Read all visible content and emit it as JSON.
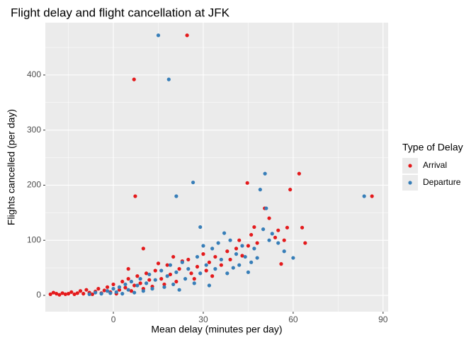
{
  "chart_data": {
    "type": "scatter",
    "title": "Flight delay and flight cancellation at JFK",
    "x_label": "Mean delay (minutes per day)",
    "y_label": "Flights cancelled (per day)",
    "legend_title": "Type of Delay",
    "legend_position": "right",
    "grid": true,
    "xlim": [
      -22.7,
      91.7
    ],
    "xticks": [
      0,
      30,
      60,
      90
    ],
    "ylim": [
      -29.6,
      495
    ],
    "yticks": [
      0,
      100,
      200,
      300,
      400
    ],
    "series": [
      {
        "name": "Arrival",
        "color": "#E41A1C",
        "x": [
          24.6,
          6.9,
          7.3,
          44.7,
          86.3,
          62,
          59,
          50.5,
          63,
          64,
          58,
          55,
          47,
          45,
          42,
          56,
          38,
          30,
          25,
          20,
          10,
          15,
          5,
          -21,
          -20,
          -19,
          -18,
          -17,
          -16,
          -15,
          -14,
          -13,
          -12,
          -11,
          -10,
          -9,
          -8,
          -7,
          -6,
          -5,
          -4,
          -3,
          -2,
          -1,
          0,
          1,
          2,
          3,
          4,
          5,
          6,
          7,
          8,
          9,
          10,
          11,
          12,
          13,
          14,
          16,
          17,
          18,
          19,
          21,
          22,
          23,
          26,
          27,
          28,
          31,
          32,
          33,
          34,
          36,
          39,
          41,
          43,
          46,
          48,
          52,
          54,
          57
        ],
        "values": [
          472,
          392,
          180,
          204,
          180,
          221,
          192,
          158,
          123,
          95,
          123,
          118,
          124,
          90,
          100,
          57,
          80,
          75,
          65,
          70,
          85,
          58,
          48,
          2,
          5,
          3,
          1,
          4,
          2,
          3,
          6,
          2,
          4,
          8,
          3,
          10,
          5,
          2,
          7,
          12,
          4,
          9,
          15,
          6,
          20,
          3,
          10,
          25,
          14,
          30,
          8,
          18,
          35,
          22,
          12,
          40,
          28,
          16,
          45,
          30,
          20,
          55,
          38,
          25,
          48,
          62,
          40,
          30,
          52,
          45,
          60,
          35,
          70,
          55,
          65,
          85,
          72,
          110,
          95,
          140,
          105,
          100
        ]
      },
      {
        "name": "Departure",
        "color": "#377EB8",
        "x": [
          15,
          18.5,
          21,
          26.6,
          50.6,
          49,
          51,
          83.7,
          29,
          37,
          53,
          35,
          30,
          57,
          60,
          48,
          40,
          45,
          -8,
          -6,
          -4,
          -2,
          -1,
          0,
          1,
          2,
          3,
          4,
          5,
          6,
          7,
          8,
          9,
          10,
          11,
          12,
          13,
          14,
          16,
          17,
          18,
          19,
          20,
          21,
          22,
          23,
          24,
          25,
          27,
          28,
          29,
          31,
          32,
          33,
          34,
          36,
          38,
          39,
          41,
          42,
          43,
          44,
          46,
          47,
          50,
          52,
          55
        ],
        "values": [
          472,
          392,
          180,
          205,
          221,
          192,
          158,
          180,
          124,
          113,
          112,
          95,
          90,
          80,
          68,
          68,
          50,
          42,
          2,
          5,
          3,
          8,
          4,
          12,
          6,
          15,
          3,
          20,
          10,
          25,
          5,
          18,
          30,
          8,
          22,
          38,
          12,
          28,
          45,
          15,
          35,
          55,
          20,
          42,
          10,
          60,
          30,
          48,
          22,
          70,
          40,
          55,
          18,
          85,
          48,
          65,
          40,
          100,
          75,
          55,
          90,
          70,
          60,
          85,
          120,
          100,
          95
        ]
      }
    ]
  }
}
